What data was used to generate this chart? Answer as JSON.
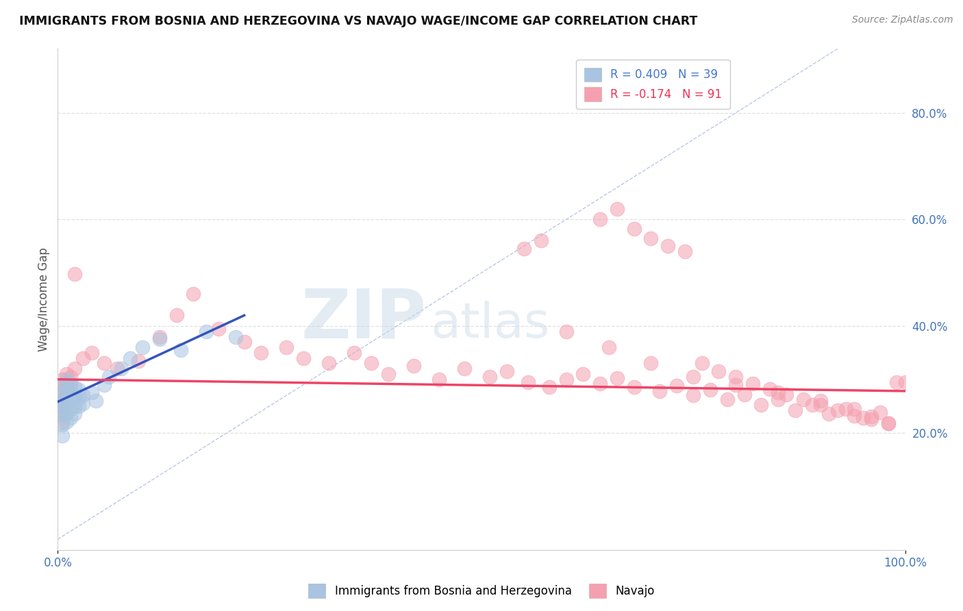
{
  "title": "IMMIGRANTS FROM BOSNIA AND HERZEGOVINA VS NAVAJO WAGE/INCOME GAP CORRELATION CHART",
  "source_text": "Source: ZipAtlas.com",
  "ylabel": "Wage/Income Gap",
  "xlim": [
    0.0,
    1.0
  ],
  "ylim": [
    -0.02,
    0.92
  ],
  "x_tick_labels": [
    "0.0%",
    "100.0%"
  ],
  "y_tick_labels_right": [
    "20.0%",
    "40.0%",
    "60.0%",
    "80.0%"
  ],
  "y_tick_positions_right": [
    0.2,
    0.4,
    0.6,
    0.8
  ],
  "legend_r1": "R = 0.409   N = 39",
  "legend_r2": "R = -0.174   N = 91",
  "color_blue": "#A8C4E0",
  "color_pink": "#F4A0B0",
  "color_blue_trend": "#3355BB",
  "color_pink_trend": "#EE4466",
  "watermark_zip": "ZIP",
  "watermark_atlas": "atlas",
  "blue_scatter_x": [
    0.005,
    0.005,
    0.005,
    0.005,
    0.005,
    0.005,
    0.005,
    0.005,
    0.01,
    0.01,
    0.01,
    0.01,
    0.01,
    0.01,
    0.015,
    0.015,
    0.015,
    0.015,
    0.015,
    0.02,
    0.02,
    0.02,
    0.02,
    0.025,
    0.025,
    0.025,
    0.03,
    0.03,
    0.04,
    0.045,
    0.055,
    0.06,
    0.075,
    0.085,
    0.1,
    0.12,
    0.145,
    0.175,
    0.21
  ],
  "blue_scatter_y": [
    0.29,
    0.275,
    0.26,
    0.25,
    0.24,
    0.23,
    0.215,
    0.195,
    0.3,
    0.28,
    0.265,
    0.25,
    0.235,
    0.22,
    0.295,
    0.278,
    0.262,
    0.245,
    0.228,
    0.285,
    0.268,
    0.25,
    0.235,
    0.28,
    0.265,
    0.25,
    0.27,
    0.255,
    0.275,
    0.26,
    0.29,
    0.305,
    0.32,
    0.34,
    0.36,
    0.375,
    0.355,
    0.39,
    0.38
  ],
  "pink_scatter_x": [
    0.005,
    0.005,
    0.005,
    0.005,
    0.005,
    0.005,
    0.005,
    0.01,
    0.01,
    0.01,
    0.015,
    0.015,
    0.02,
    0.02,
    0.03,
    0.04,
    0.055,
    0.07,
    0.095,
    0.12,
    0.14,
    0.16,
    0.19,
    0.22,
    0.24,
    0.27,
    0.29,
    0.32,
    0.35,
    0.37,
    0.39,
    0.42,
    0.45,
    0.48,
    0.51,
    0.53,
    0.555,
    0.58,
    0.6,
    0.62,
    0.64,
    0.66,
    0.68,
    0.71,
    0.73,
    0.75,
    0.77,
    0.79,
    0.81,
    0.83,
    0.85,
    0.87,
    0.89,
    0.91,
    0.93,
    0.95,
    0.97,
    0.99,
    0.55,
    0.57,
    0.64,
    0.66,
    0.68,
    0.7,
    0.72,
    0.74,
    0.76,
    0.78,
    0.8,
    0.82,
    0.84,
    0.86,
    0.88,
    0.9,
    0.92,
    0.94,
    0.96,
    0.98,
    0.6,
    0.65,
    0.7,
    0.75,
    0.8,
    0.85,
    0.9,
    0.94,
    0.96,
    0.98,
    1.0
  ],
  "pink_scatter_y": [
    0.3,
    0.288,
    0.275,
    0.262,
    0.248,
    0.235,
    0.22,
    0.31,
    0.295,
    0.28,
    0.305,
    0.288,
    0.498,
    0.32,
    0.34,
    0.35,
    0.33,
    0.32,
    0.335,
    0.38,
    0.42,
    0.46,
    0.395,
    0.37,
    0.35,
    0.36,
    0.34,
    0.33,
    0.35,
    0.33,
    0.31,
    0.325,
    0.3,
    0.32,
    0.305,
    0.315,
    0.295,
    0.285,
    0.3,
    0.31,
    0.292,
    0.302,
    0.285,
    0.278,
    0.288,
    0.27,
    0.28,
    0.262,
    0.272,
    0.252,
    0.262,
    0.242,
    0.252,
    0.235,
    0.245,
    0.228,
    0.238,
    0.295,
    0.545,
    0.56,
    0.6,
    0.62,
    0.582,
    0.565,
    0.55,
    0.54,
    0.33,
    0.315,
    0.305,
    0.292,
    0.282,
    0.272,
    0.262,
    0.252,
    0.242,
    0.232,
    0.225,
    0.218,
    0.39,
    0.36,
    0.33,
    0.305,
    0.29,
    0.275,
    0.26,
    0.245,
    0.23,
    0.218,
    0.295
  ],
  "blue_trend_x": [
    0.0,
    0.22
  ],
  "blue_trend_y": [
    0.258,
    0.42
  ],
  "pink_trend_x": [
    0.0,
    1.0
  ],
  "pink_trend_y": [
    0.3,
    0.278
  ],
  "ref_line_x": [
    0.0,
    0.92
  ],
  "ref_line_y": [
    0.0,
    0.92
  ],
  "background_color": "#FFFFFF",
  "grid_color": "#DDDDDD"
}
